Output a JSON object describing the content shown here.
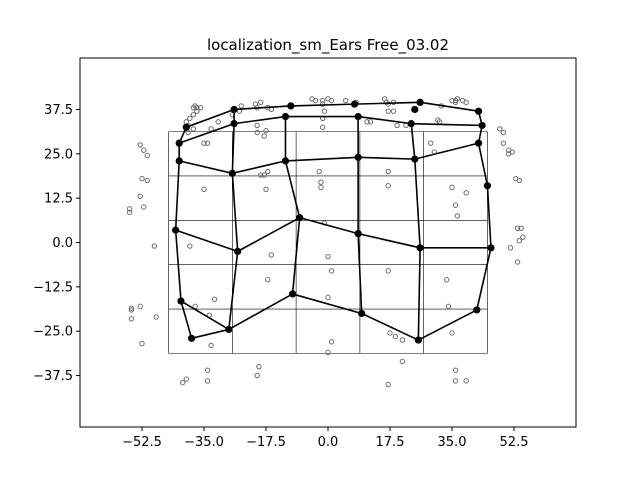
{
  "chart_data": {
    "type": "scatter",
    "title": "localization_sm_Ears Free_03.02",
    "xlabel": "",
    "ylabel": "",
    "xlim": [
      -70,
      70
    ],
    "ylim": [
      -52,
      52
    ],
    "xticks": [
      -52.5,
      -35.0,
      -17.5,
      0.0,
      17.5,
      35.0,
      52.5
    ],
    "yticks": [
      37.5,
      25.0,
      12.5,
      0.0,
      -12.5,
      -25.0,
      -37.5
    ],
    "xtick_labels": [
      "−52.5",
      "−35.0",
      "−17.5",
      "0.0",
      "17.5",
      "35.0",
      "52.5"
    ],
    "ytick_labels": [
      "37.5",
      "25.0",
      "12.5",
      "0.0",
      "−12.5",
      "−25.0",
      "−37.5"
    ],
    "grid": {
      "x": [
        -45,
        -27,
        -9,
        9,
        27,
        45
      ],
      "y": [
        31.25,
        18.75,
        6.25,
        -6.25,
        -18.75,
        -31.25
      ]
    },
    "response_points": [
      [
        -37,
        37
      ],
      [
        -38,
        36
      ],
      [
        -36,
        38
      ],
      [
        -37.5,
        38.5
      ],
      [
        -38,
        38
      ],
      [
        -37,
        38
      ],
      [
        -39,
        35
      ],
      [
        -40,
        34
      ],
      [
        -39.5,
        33
      ],
      [
        -39.5,
        31
      ],
      [
        -38,
        32
      ],
      [
        -35,
        28
      ],
      [
        -33,
        32
      ],
      [
        -31,
        34
      ],
      [
        -27,
        36
      ],
      [
        -25,
        37
      ],
      [
        -24.5,
        38.5
      ],
      [
        -20.5,
        39
      ],
      [
        -20,
        38
      ],
      [
        -19,
        39.5
      ],
      [
        -17,
        38
      ],
      [
        -16,
        37.5
      ],
      [
        -20,
        33
      ],
      [
        -20,
        31
      ],
      [
        -18,
        30
      ],
      [
        -17.5,
        31.5
      ],
      [
        -4.5,
        40.5
      ],
      [
        -3.5,
        40
      ],
      [
        -1.5,
        40
      ],
      [
        -1.5,
        39
      ],
      [
        -1,
        37
      ],
      [
        -1.5,
        35
      ],
      [
        -1.5,
        32.5
      ],
      [
        0,
        40.5
      ],
      [
        1,
        40
      ],
      [
        5,
        40
      ],
      [
        8,
        39.5
      ],
      [
        11,
        34
      ],
      [
        12,
        34
      ],
      [
        16,
        40.5
      ],
      [
        17,
        39
      ],
      [
        16.5,
        39.5
      ],
      [
        18.5,
        39.5
      ],
      [
        17,
        37
      ],
      [
        18.5,
        37
      ],
      [
        19.5,
        33
      ],
      [
        22,
        33
      ],
      [
        29,
        28
      ],
      [
        30,
        25.5
      ],
      [
        31.5,
        34
      ],
      [
        31,
        34.5
      ],
      [
        32,
        38.5
      ],
      [
        35,
        40
      ],
      [
        36,
        40
      ],
      [
        36.5,
        40.5
      ],
      [
        38,
        40
      ],
      [
        36,
        39.5
      ],
      [
        39,
        39.5
      ],
      [
        48.5,
        32
      ],
      [
        49.5,
        31
      ],
      [
        49.5,
        28
      ],
      [
        51,
        25
      ],
      [
        51,
        26
      ],
      [
        52,
        25.5
      ],
      [
        53,
        18
      ],
      [
        54,
        17.5
      ],
      [
        -53,
        27.5
      ],
      [
        -52,
        26
      ],
      [
        -51,
        24.5
      ],
      [
        -52.5,
        18
      ],
      [
        -51,
        17.5
      ],
      [
        -53,
        13
      ],
      [
        -56,
        9.5
      ],
      [
        -56,
        8.5
      ],
      [
        -52,
        10
      ],
      [
        -49,
        -1
      ],
      [
        -53,
        -18
      ],
      [
        -55.5,
        -18.5
      ],
      [
        -55.5,
        -19
      ],
      [
        -55.5,
        -21.5
      ],
      [
        -52.5,
        -28.5
      ],
      [
        -48.5,
        -21
      ],
      [
        -39,
        -1
      ],
      [
        -35,
        15
      ],
      [
        -34,
        28
      ],
      [
        -33,
        -29
      ],
      [
        -34,
        -36
      ],
      [
        -34,
        -39
      ],
      [
        -37.5,
        -18
      ],
      [
        -33.5,
        -20.5
      ],
      [
        -32,
        -16
      ],
      [
        -41,
        -39.5
      ],
      [
        -40,
        -38.5
      ],
      [
        -20,
        -37.5
      ],
      [
        -19.5,
        -35
      ],
      [
        -17,
        20
      ],
      [
        -18,
        19
      ],
      [
        -19,
        19
      ],
      [
        -17.5,
        15
      ],
      [
        -16,
        -3.5
      ],
      [
        -17,
        -10.5
      ],
      [
        -2.5,
        20
      ],
      [
        -2,
        17
      ],
      [
        -2,
        15.5
      ],
      [
        -1,
        5.5
      ],
      [
        0,
        -4
      ],
      [
        1,
        -8
      ],
      [
        0,
        -15.5
      ],
      [
        1,
        -28
      ],
      [
        0,
        -31
      ],
      [
        17,
        20
      ],
      [
        17,
        16
      ],
      [
        17,
        -8
      ],
      [
        17.5,
        -25.5
      ],
      [
        19,
        -26.5
      ],
      [
        21,
        -27.5
      ],
      [
        21,
        -33.5
      ],
      [
        17,
        -40
      ],
      [
        35,
        15.5
      ],
      [
        36,
        10.5
      ],
      [
        36.5,
        7.5
      ],
      [
        39,
        14
      ],
      [
        33.5,
        -10.5
      ],
      [
        34,
        -18
      ],
      [
        35,
        -25.5
      ],
      [
        36,
        -36
      ],
      [
        36,
        -39
      ],
      [
        39,
        -39
      ],
      [
        51.5,
        -1.5
      ],
      [
        53.5,
        4
      ],
      [
        54.5,
        4
      ],
      [
        55,
        1.5
      ],
      [
        54,
        0.5
      ],
      [
        53.5,
        -5.5
      ]
    ],
    "grid_vertices": [
      [
        -42,
        28
      ],
      [
        -42,
        23
      ],
      [
        -43,
        3.5
      ],
      [
        -41.5,
        -16.5
      ],
      [
        -38.5,
        -27
      ],
      [
        -40,
        32.5
      ],
      [
        -26.5,
        37.5
      ],
      [
        -26.5,
        33.5
      ],
      [
        -27,
        19.5
      ],
      [
        -25.5,
        -2.5
      ],
      [
        -28,
        -24.5
      ],
      [
        -12,
        35.5
      ],
      [
        -10.5,
        38.5
      ],
      [
        -12,
        23
      ],
      [
        -8,
        7
      ],
      [
        -10,
        -14.5
      ],
      [
        8.5,
        35.5
      ],
      [
        7.5,
        39
      ],
      [
        8.5,
        24
      ],
      [
        8.5,
        2.5
      ],
      [
        9.5,
        -20
      ],
      [
        24.5,
        37.5
      ],
      [
        26,
        39.5
      ],
      [
        23.5,
        33.5
      ],
      [
        24.5,
        23.5
      ],
      [
        26,
        -1.5
      ],
      [
        25.5,
        -27.5
      ],
      [
        42.5,
        37
      ],
      [
        43.5,
        33
      ],
      [
        42.5,
        28
      ],
      [
        45,
        16
      ],
      [
        46,
        -1.5
      ],
      [
        42,
        -19
      ]
    ],
    "grid_edges": [
      [
        0,
        1
      ],
      [
        1,
        2
      ],
      [
        2,
        3
      ],
      [
        3,
        4
      ],
      [
        0,
        5
      ],
      [
        5,
        6
      ],
      [
        6,
        7
      ],
      [
        7,
        8
      ],
      [
        8,
        9
      ],
      [
        9,
        10
      ],
      [
        6,
        12
      ],
      [
        12,
        17
      ],
      [
        17,
        22
      ],
      [
        22,
        27
      ],
      [
        27,
        28
      ],
      [
        28,
        29
      ],
      [
        29,
        30
      ],
      [
        30,
        31
      ],
      [
        31,
        32
      ],
      [
        7,
        11
      ],
      [
        11,
        16
      ],
      [
        16,
        23
      ],
      [
        23,
        28
      ],
      [
        1,
        8
      ],
      [
        8,
        13
      ],
      [
        13,
        18
      ],
      [
        18,
        24
      ],
      [
        24,
        29
      ],
      [
        2,
        9
      ],
      [
        9,
        14
      ],
      [
        14,
        19
      ],
      [
        19,
        25
      ],
      [
        25,
        31
      ],
      [
        3,
        10
      ],
      [
        10,
        15
      ],
      [
        15,
        20
      ],
      [
        20,
        26
      ],
      [
        26,
        32
      ],
      [
        4,
        10
      ],
      [
        11,
        13
      ],
      [
        13,
        14
      ],
      [
        14,
        15
      ],
      [
        16,
        18
      ],
      [
        18,
        19
      ],
      [
        19,
        20
      ],
      [
        23,
        24
      ],
      [
        24,
        25
      ],
      [
        25,
        26
      ],
      [
        0,
        7
      ]
    ]
  }
}
